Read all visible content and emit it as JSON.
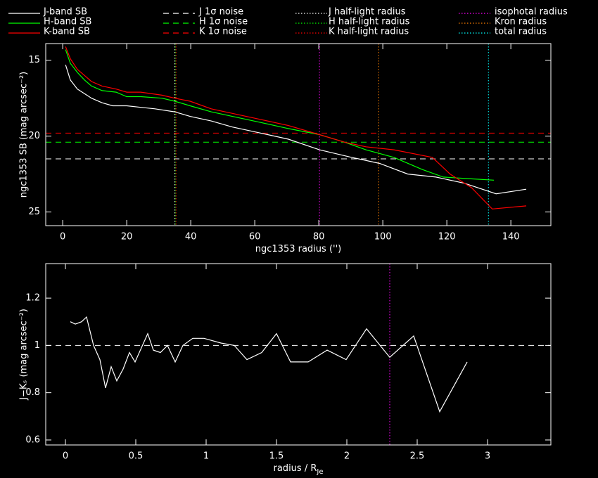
{
  "chart_data": [
    {
      "type": "line",
      "xlabel": "ngc1353 radius ('')",
      "ylabel": "ngc1353 SB (mag arcsec⁻²)",
      "xlim": [
        -5.3,
        152.5
      ],
      "ylim": [
        25.9,
        13.9
      ],
      "xticks": [
        0,
        20,
        40,
        60,
        80,
        100,
        120,
        140
      ],
      "yticks": [
        15,
        20,
        25
      ],
      "series": [
        {
          "name": "J-band SB",
          "color": "#ffffff",
          "style": "solid",
          "x": [
            0.9,
            2.4,
            4.6,
            6.8,
            9,
            12.3,
            15.6,
            20,
            24.4,
            28.8,
            35,
            39.8,
            46.4,
            53,
            61.8,
            70.5,
            80.2,
            90.3,
            99,
            107.8,
            116.6,
            125.4,
            135.4,
            144.8
          ],
          "values": [
            15.3,
            16.3,
            16.9,
            17.2,
            17.5,
            17.8,
            18.0,
            18.0,
            18.1,
            18.2,
            18.4,
            18.7,
            19.0,
            19.4,
            19.8,
            20.2,
            20.9,
            21.4,
            21.8,
            22.5,
            22.7,
            23.1,
            23.8,
            23.5
          ]
        },
        {
          "name": "H-band SB",
          "color": "#00ff00",
          "style": "solid",
          "x": [
            0.9,
            2.4,
            4.6,
            6.8,
            9,
            12.3,
            16.7,
            20,
            24.4,
            31,
            35,
            39.8,
            46.4,
            53,
            61.8,
            70.5,
            80.2,
            88.1,
            94.7,
            103.5,
            112.3,
            118.9,
            126.6,
            134.7
          ],
          "values": [
            14.3,
            15.2,
            15.8,
            16.3,
            16.7,
            17.0,
            17.1,
            17.4,
            17.4,
            17.5,
            17.7,
            18.0,
            18.4,
            18.7,
            19.1,
            19.5,
            19.9,
            20.4,
            20.9,
            21.4,
            22.2,
            22.7,
            22.8,
            22.9
          ]
        },
        {
          "name": "K-band SB",
          "color": "#ff0000",
          "style": "solid",
          "x": [
            0.9,
            2.4,
            4.6,
            6.8,
            9,
            12.3,
            16.7,
            20,
            24.4,
            31,
            35,
            39.8,
            46.4,
            53,
            61.8,
            70.5,
            80.2,
            88.1,
            94.7,
            103.5,
            115.5,
            121,
            127.7,
            134.2,
            144.8
          ],
          "values": [
            14.1,
            14.9,
            15.6,
            16.0,
            16.4,
            16.7,
            16.9,
            17.1,
            17.1,
            17.3,
            17.5,
            17.7,
            18.2,
            18.5,
            18.9,
            19.3,
            19.9,
            20.4,
            20.7,
            20.9,
            21.4,
            22.5,
            23.4,
            24.8,
            24.6
          ]
        }
      ],
      "hlines": [
        {
          "name": "J 1σ noise",
          "color": "#ffffff",
          "style": "dashed",
          "value": 21.5
        },
        {
          "name": "H 1σ noise",
          "color": "#00ff00",
          "style": "dashed",
          "value": 20.4
        },
        {
          "name": "K 1σ noise",
          "color": "#ff0000",
          "style": "dashed",
          "value": 19.8
        }
      ],
      "vlines": [
        {
          "name": "J half-light radius",
          "color": "#ffffff",
          "style": "dotted",
          "value": 35.0
        },
        {
          "name": "H half-light radius",
          "color": "#00ff00",
          "style": "dotted",
          "value": 35.2
        },
        {
          "name": "K half-light radius",
          "color": "#ff0000",
          "style": "dotted",
          "value": 35.4
        },
        {
          "name": "isophotal radius",
          "color": "#ff00ff",
          "style": "dotted",
          "value": 80.2
        },
        {
          "name": "Kron radius",
          "color": "#ff8000",
          "style": "dotted",
          "value": 98.7
        },
        {
          "name": "total radius",
          "color": "#00ffff",
          "style": "dotted",
          "value": 133
        }
      ]
    },
    {
      "type": "line",
      "xlabel": "radius / R",
      "xlabel_sub": "Je",
      "ylabel": "J−Kₛ (mag arcsec⁻²)",
      "xlim": [
        -0.14,
        3.45
      ],
      "ylim": [
        0.579,
        1.346
      ],
      "xticks": [
        0,
        0.5,
        1,
        1.5,
        2,
        2.5,
        3
      ],
      "yticks": [
        0.6,
        0.8,
        1,
        1.2
      ],
      "series": [
        {
          "color": "#ffffff",
          "style": "solid",
          "x": [
            0.035,
            0.07,
            0.115,
            0.15,
            0.2,
            0.245,
            0.285,
            0.325,
            0.365,
            0.41,
            0.455,
            0.495,
            0.54,
            0.585,
            0.625,
            0.675,
            0.725,
            0.78,
            0.835,
            0.905,
            0.985,
            1.105,
            1.2,
            1.29,
            1.395,
            1.5,
            1.6,
            1.725,
            1.86,
            1.995,
            2.14,
            2.305,
            2.475,
            2.66,
            2.855
          ],
          "values": [
            1.1,
            1.09,
            1.1,
            1.12,
            1.0,
            0.94,
            0.82,
            0.91,
            0.85,
            0.9,
            0.97,
            0.93,
            0.99,
            1.05,
            0.98,
            0.97,
            1.0,
            0.93,
            1.0,
            1.03,
            1.03,
            1.01,
            1.0,
            0.94,
            0.97,
            1.05,
            0.93,
            0.93,
            0.98,
            0.94,
            1.07,
            0.95,
            1.04,
            0.72,
            0.93
          ]
        }
      ],
      "hlines": [
        {
          "color": "#ffffff",
          "style": "dashed",
          "value": 1
        }
      ],
      "vlines": [
        {
          "color": "#ff00ff",
          "style": "dotted",
          "value": 2.305
        }
      ]
    }
  ]
}
